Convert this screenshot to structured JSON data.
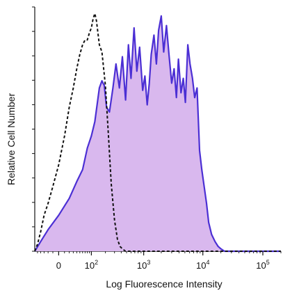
{
  "chart_data": {
    "type": "area",
    "title": "",
    "xlabel": "Log Fluorescence Intensity",
    "ylabel": "Relative Cell Number",
    "x_scale": "biexponential",
    "x_ticks": [
      {
        "value": 0,
        "base": "0",
        "exp": ""
      },
      {
        "value": 100,
        "base": "10",
        "exp": "2"
      },
      {
        "value": 1000,
        "base": "10",
        "exp": "3"
      },
      {
        "value": 10000,
        "base": "10",
        "exp": "4"
      },
      {
        "value": 100000,
        "base": "10",
        "exp": "5"
      }
    ],
    "xlim": [
      -60,
      200000
    ],
    "ylim": [
      0,
      100
    ],
    "grid": false,
    "legend": "none",
    "colors": {
      "stained_line": "#4b2fd4",
      "stained_fill": "#d9b8ee",
      "control_line": "#111111"
    },
    "series": [
      {
        "style": "filled-solid",
        "x": [
          -60,
          -40,
          -20,
          0,
          20,
          40,
          60,
          80,
          100,
          120,
          150,
          170,
          190,
          210,
          240,
          280,
          320,
          370,
          420,
          480,
          540,
          600,
          680,
          760,
          850,
          960,
          1050,
          1150,
          1250,
          1350,
          1500,
          1650,
          1800,
          2000,
          2200,
          2450,
          2700,
          3000,
          3300,
          3600,
          3900,
          4300,
          4700,
          5100,
          5600,
          6100,
          6700,
          7300,
          8000,
          8800,
          9600,
          10500,
          11500,
          12500,
          14000,
          16000,
          18000,
          20000,
          23000,
          27000,
          32000,
          40000,
          60000,
          100000,
          200000
        ],
        "y": [
          0,
          4,
          9,
          15,
          22,
          29,
          34,
          43,
          48,
          54,
          68,
          71,
          69,
          60,
          58,
          68,
          78,
          68,
          81,
          63,
          86,
          72,
          93,
          75,
          85,
          67,
          73,
          61,
          70,
          82,
          90,
          78,
          92,
          98,
          83,
          94,
          82,
          70,
          76,
          64,
          80,
          66,
          72,
          62,
          86,
          78,
          72,
          64,
          68,
          42,
          34,
          27,
          20,
          12,
          7,
          4,
          2,
          1,
          0,
          0,
          0,
          0,
          0,
          0,
          0
        ]
      },
      {
        "style": "dashed",
        "x": [
          -60,
          -50,
          -40,
          -30,
          -20,
          -10,
          0,
          10,
          20,
          30,
          40,
          50,
          60,
          70,
          80,
          90,
          100,
          110,
          120,
          130,
          150,
          170,
          200,
          230,
          260,
          300,
          340,
          380,
          420,
          480,
          550,
          650,
          800,
          1000,
          2000,
          10000,
          200000
        ],
        "y": [
          0,
          3,
          8,
          15,
          20,
          27,
          36,
          48,
          60,
          68,
          76,
          82,
          86,
          88,
          88,
          91,
          93,
          97,
          99,
          96,
          86,
          83,
          69,
          48,
          28,
          13,
          5,
          2,
          1,
          0,
          0,
          0,
          0,
          0,
          0,
          0,
          0
        ]
      }
    ]
  }
}
